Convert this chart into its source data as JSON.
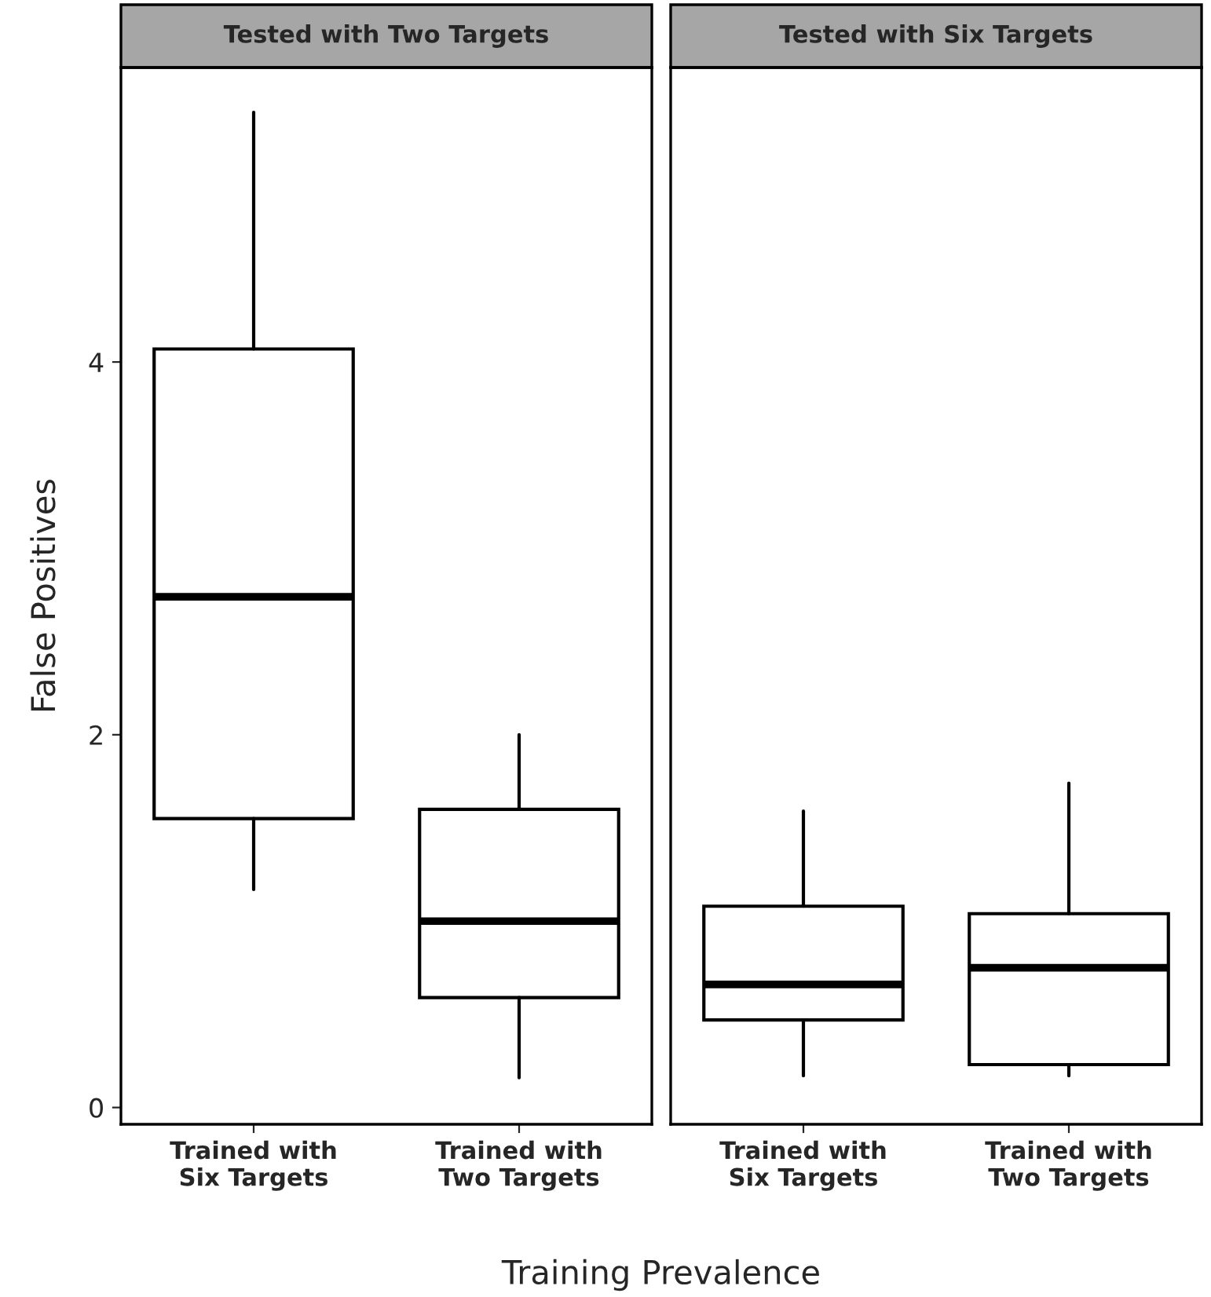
{
  "chart_data": [
    {
      "type": "box",
      "title": "Tested with Two Targets",
      "xlabel": "Training Prevalence",
      "ylabel": "False Positives",
      "categories": [
        "Trained with\nSix Targets",
        "Trained with\nTwo Targets"
      ],
      "boxes": [
        {
          "low": 1.17,
          "q1": 1.55,
          "median": 2.74,
          "q3": 4.07,
          "high": 5.34
        },
        {
          "low": 0.16,
          "q1": 0.59,
          "median": 1.0,
          "q3": 1.6,
          "high": 2.0
        }
      ],
      "ylim": [
        -0.09,
        5.58
      ],
      "yticks": [
        0,
        2,
        4
      ],
      "grid": false
    },
    {
      "type": "box",
      "title": "Tested with Six Targets",
      "categories": [
        "Trained with\nSix Targets",
        "Trained with\nTwo Targets"
      ],
      "boxes": [
        {
          "low": 0.17,
          "q1": 0.47,
          "median": 0.66,
          "q3": 1.08,
          "high": 1.59
        },
        {
          "low": 0.17,
          "q1": 0.23,
          "median": 0.75,
          "q3": 1.04,
          "high": 1.74
        }
      ],
      "ylim": [
        -0.09,
        5.58
      ],
      "yticks": [
        0,
        2,
        4
      ],
      "tick_labels": "x",
      "grid": false
    }
  ]
}
